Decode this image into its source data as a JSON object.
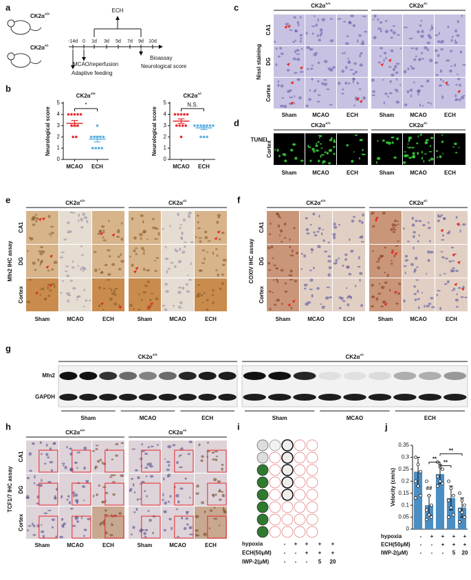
{
  "panel_labels": [
    "a",
    "b",
    "c",
    "d",
    "e",
    "f",
    "g",
    "h",
    "i",
    "j"
  ],
  "genotypes": [
    {
      "base": "CK2α",
      "sup": "+/+"
    },
    {
      "base": "CK2α",
      "sup": "+/-"
    }
  ],
  "groups": [
    "Sham",
    "MCAO",
    "ECH"
  ],
  "regions": [
    "CA1",
    "DG",
    "Cortex"
  ],
  "timeline": {
    "ticks": [
      "-14d",
      "0",
      "1d",
      "3d",
      "5d",
      "7d",
      "9d",
      "10d"
    ],
    "treatment": "ECH",
    "events": [
      "MCAO/reperfusion",
      "Adaptive feeding",
      "Bioassay",
      "Neurological score"
    ]
  },
  "nissl": {
    "title": "Nissl staining"
  },
  "tunel": {
    "title": "TUNEL",
    "region": "Cortex"
  },
  "ihc": [
    "Mfn2 IHC assay",
    "COXIV IHC assay",
    "TCF1/7 IHC assay"
  ],
  "blot": {
    "proteins": [
      "Mfn2",
      "GAPDH"
    ]
  },
  "conditions": [
    {
      "name": "hypoxia",
      "marks": [
        "-",
        "+",
        "+",
        "+",
        "+"
      ]
    },
    {
      "name": "ECH(50μM)",
      "marks": [
        "-",
        "-",
        "+",
        "+",
        "+"
      ]
    },
    {
      "name": "IWP-2(μM)",
      "marks": [
        "-",
        "-",
        "-",
        "5",
        "20"
      ]
    }
  ],
  "chart_data": [
    {
      "type": "dot",
      "ylabel": "Neurological score",
      "categories": [
        "MCAO",
        "ECH"
      ],
      "significance": "*",
      "ylim": [
        0,
        5
      ],
      "yticks": [
        0,
        1,
        2,
        3,
        4,
        5
      ],
      "groups": [
        {
          "color": "#e8262b",
          "points": [
            4,
            4,
            4,
            4,
            4,
            3,
            3,
            3,
            2,
            2
          ],
          "mean": 3.2,
          "sem": 0.25
        },
        {
          "color": "#5aaee0",
          "points": [
            3,
            2,
            2,
            2,
            2,
            2,
            1,
            1,
            1,
            1
          ],
          "mean": 1.8,
          "sem": 0.25
        }
      ]
    },
    {
      "type": "dot",
      "ylabel": "Neurological score",
      "categories": [
        "MCAO",
        "ECH"
      ],
      "significance": "N.S.",
      "ylim": [
        0,
        5
      ],
      "yticks": [
        0,
        1,
        2,
        3,
        4,
        5
      ],
      "groups": [
        {
          "color": "#e8262b",
          "points": [
            4,
            4,
            4,
            4,
            4,
            3,
            3,
            3,
            3,
            2
          ],
          "mean": 3.4,
          "sem": 0.2
        },
        {
          "color": "#5aaee0",
          "points": [
            3,
            3,
            3,
            3,
            3,
            3,
            3,
            2,
            2,
            2
          ],
          "mean": 2.8,
          "sem": 0.15
        }
      ]
    },
    {
      "type": "bar",
      "ylabel": "Velocity (cm/s)",
      "color": "#4a8ec4",
      "ylim": [
        0,
        0.35
      ],
      "yticks": [
        0,
        0.05,
        0.1,
        0.15,
        0.2,
        0.25,
        0.3,
        0.35
      ],
      "values": [
        0.24,
        0.1,
        0.23,
        0.13,
        0.09
      ],
      "errors": [
        0.06,
        0.04,
        0.04,
        0.05,
        0.04
      ],
      "points": [
        [
          0.3,
          0.27,
          0.24,
          0.2,
          0.18,
          0.14,
          0.13
        ],
        [
          0.2,
          0.14,
          0.1,
          0.08,
          0.06,
          0.05,
          0.04
        ],
        [
          0.28,
          0.26,
          0.25,
          0.22,
          0.2,
          0.19,
          0.18
        ],
        [
          0.2,
          0.17,
          0.14,
          0.12,
          0.09,
          0.06,
          0.05
        ],
        [
          0.15,
          0.12,
          0.1,
          0.08,
          0.07,
          0.05,
          0.03
        ]
      ],
      "annotations": [
        "##",
        "**",
        "**",
        "**"
      ]
    }
  ]
}
